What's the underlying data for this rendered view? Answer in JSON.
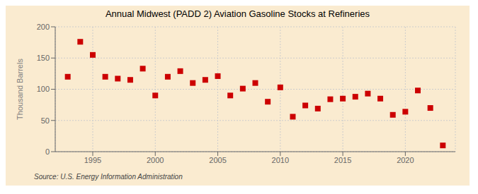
{
  "chart_data": {
    "type": "scatter",
    "title": "Annual Midwest (PADD 2) Aviation Gasoline Stocks at Refineries",
    "ylabel": "Thousand Barrels",
    "annotation": "Source: U.S. Energy Information Administration",
    "x": [
      1993,
      1994,
      1995,
      1996,
      1997,
      1998,
      1999,
      2000,
      2001,
      2002,
      2003,
      2004,
      2005,
      2006,
      2007,
      2008,
      2009,
      2010,
      2011,
      2012,
      2013,
      2014,
      2015,
      2016,
      2017,
      2018,
      2019,
      2020,
      2021,
      2022,
      2023
    ],
    "values": [
      120,
      176,
      155,
      120,
      117,
      115,
      133,
      90,
      120,
      129,
      110,
      115,
      121,
      90,
      101,
      110,
      80,
      103,
      56,
      74,
      69,
      84,
      85,
      88,
      93,
      85,
      59,
      64,
      98,
      70,
      10
    ],
    "color": "#cc0000",
    "marker": "square",
    "xlim": [
      1992,
      2024
    ],
    "ylim": [
      0,
      200
    ],
    "xticks": [
      1995,
      2000,
      2005,
      2010,
      2015,
      2020
    ],
    "yticks": [
      0,
      50,
      100,
      150,
      200
    ],
    "grid": true
  }
}
